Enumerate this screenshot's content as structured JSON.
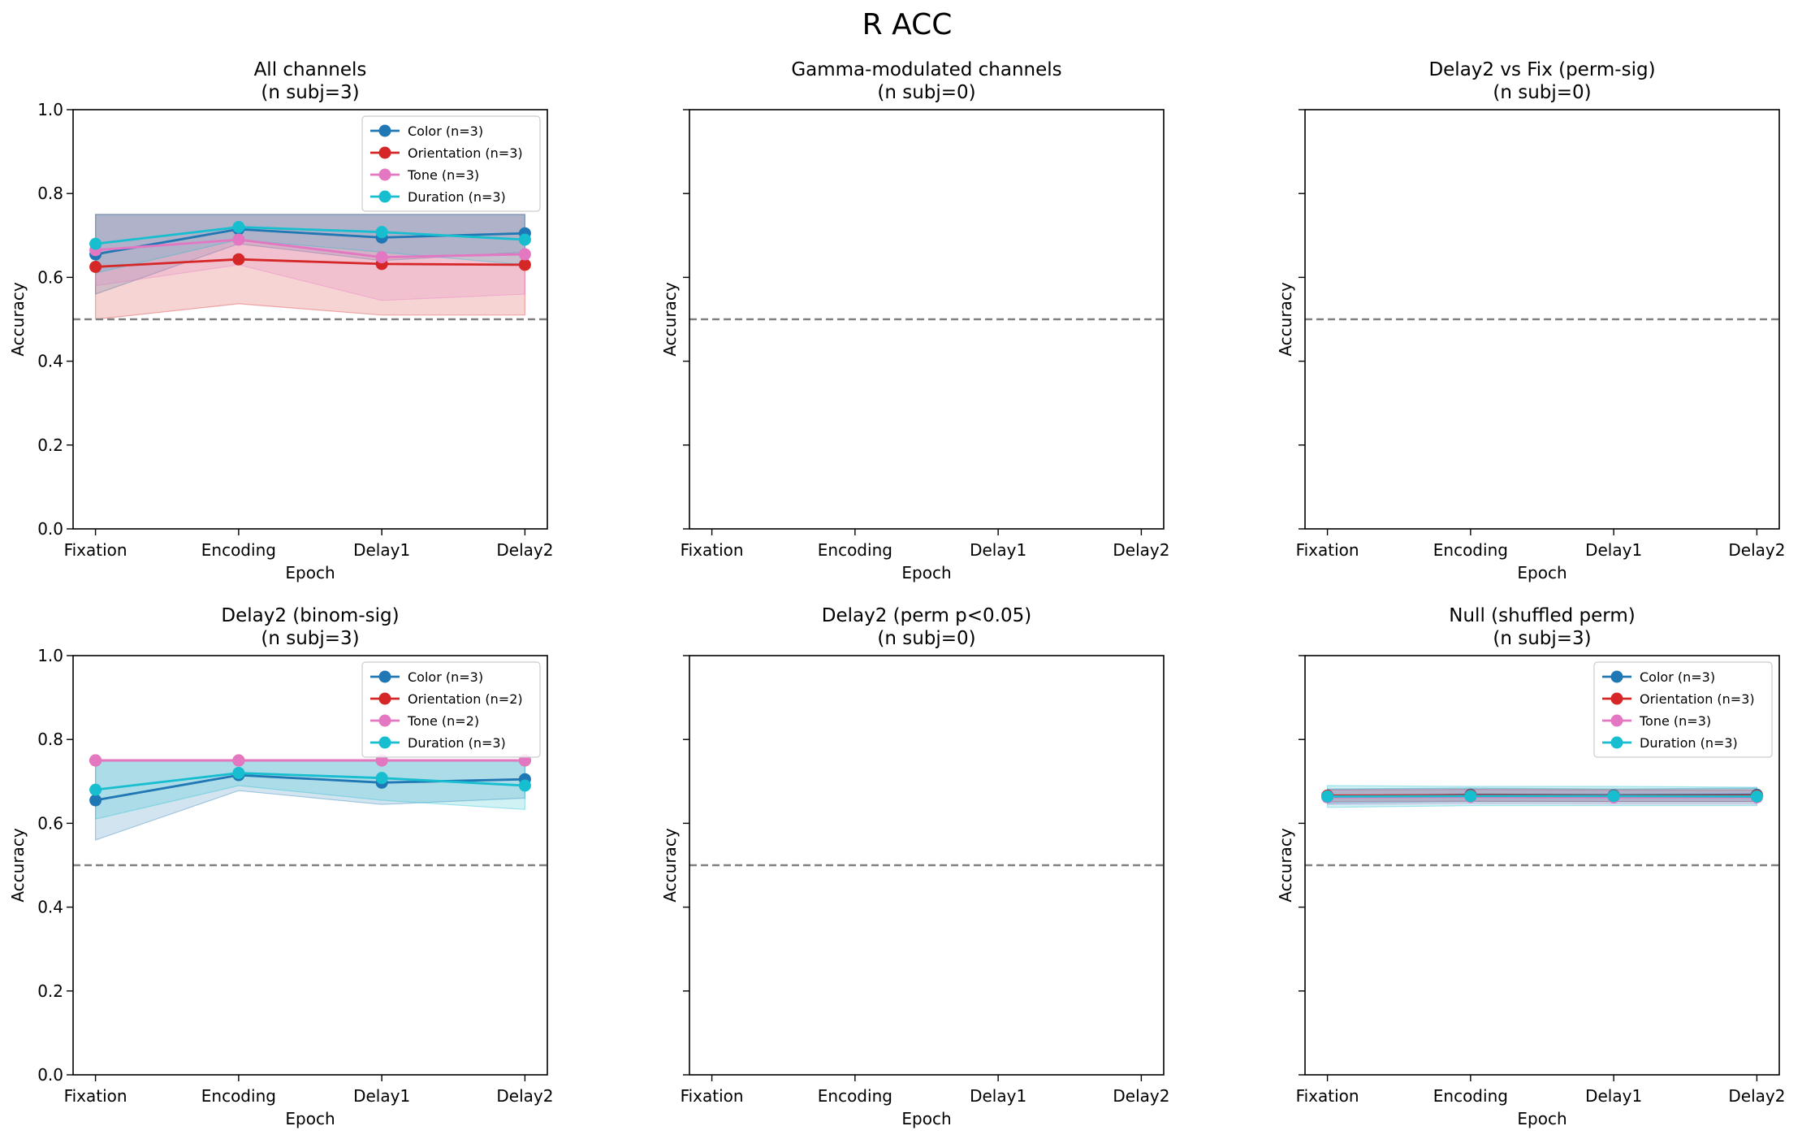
{
  "figure_title": "R ACC",
  "colors": {
    "Color": "#1f77b4",
    "Orientation": "#d62728",
    "Tone": "#e377c2",
    "Duration": "#17becf",
    "chance_line": "#808080"
  },
  "chart_data": [
    {
      "type": "line",
      "title_line1": "All channels",
      "title_line2": "(n subj=3)",
      "xlabel": "Epoch",
      "ylabel": "Accuracy",
      "categories": [
        "Fixation",
        "Encoding",
        "Delay1",
        "Delay2"
      ],
      "ylim": [
        0,
        1
      ],
      "yticks": [
        "0.0",
        "0.2",
        "0.4",
        "0.6",
        "0.8",
        "1.0"
      ],
      "chance_level": 0.5,
      "legend_position": "top-right",
      "series": [
        {
          "name": "Color (n=3)",
          "key": "Color",
          "values": [
            0.655,
            0.715,
            0.695,
            0.705
          ],
          "lower": [
            0.56,
            0.68,
            0.64,
            0.66
          ],
          "upper": [
            0.75,
            0.75,
            0.75,
            0.75
          ]
        },
        {
          "name": "Orientation (n=3)",
          "key": "Orientation",
          "values": [
            0.625,
            0.643,
            0.632,
            0.63
          ],
          "lower": [
            0.5,
            0.537,
            0.51,
            0.51
          ],
          "upper": [
            0.75,
            0.75,
            0.75,
            0.75
          ]
        },
        {
          "name": "Tone (n=3)",
          "key": "Tone",
          "values": [
            0.665,
            0.69,
            0.648,
            0.655
          ],
          "lower": [
            0.58,
            0.63,
            0.545,
            0.56
          ],
          "upper": [
            0.75,
            0.75,
            0.75,
            0.75
          ]
        },
        {
          "name": "Duration (n=3)",
          "key": "Duration",
          "values": [
            0.68,
            0.72,
            0.708,
            0.69
          ],
          "lower": [
            0.61,
            0.69,
            0.66,
            0.63
          ],
          "upper": [
            0.75,
            0.75,
            0.75,
            0.75
          ]
        }
      ]
    },
    {
      "type": "line",
      "title_line1": "Gamma-modulated channels",
      "title_line2": "(n subj=0)",
      "xlabel": "Epoch",
      "ylabel": "Accuracy",
      "categories": [
        "Fixation",
        "Encoding",
        "Delay1",
        "Delay2"
      ],
      "ylim": [
        0,
        1
      ],
      "yticks": [],
      "chance_level": 0.5,
      "series": []
    },
    {
      "type": "line",
      "title_line1": "Delay2 vs Fix (perm-sig)",
      "title_line2": "(n subj=0)",
      "xlabel": "Epoch",
      "ylabel": "Accuracy",
      "categories": [
        "Fixation",
        "Encoding",
        "Delay1",
        "Delay2"
      ],
      "ylim": [
        0,
        1
      ],
      "yticks": [],
      "chance_level": 0.5,
      "series": []
    },
    {
      "type": "line",
      "title_line1": "Delay2 (binom-sig)",
      "title_line2": "(n subj=3)",
      "xlabel": "Epoch",
      "ylabel": "Accuracy",
      "categories": [
        "Fixation",
        "Encoding",
        "Delay1",
        "Delay2"
      ],
      "ylim": [
        0,
        1
      ],
      "yticks": [
        "0.0",
        "0.2",
        "0.4",
        "0.6",
        "0.8",
        "1.0"
      ],
      "chance_level": 0.5,
      "legend_position": "top-right",
      "series": [
        {
          "name": "Color (n=3)",
          "key": "Color",
          "values": [
            0.655,
            0.715,
            0.697,
            0.705
          ],
          "lower": [
            0.56,
            0.678,
            0.645,
            0.66
          ],
          "upper": [
            0.75,
            0.75,
            0.75,
            0.75
          ]
        },
        {
          "name": "Orientation (n=2)",
          "key": "Orientation",
          "values": [
            0.75,
            0.75,
            0.75,
            0.75
          ],
          "lower": [
            0.75,
            0.75,
            0.75,
            0.75
          ],
          "upper": [
            0.75,
            0.75,
            0.75,
            0.75
          ]
        },
        {
          "name": "Tone (n=2)",
          "key": "Tone",
          "values": [
            0.75,
            0.75,
            0.75,
            0.75
          ],
          "lower": [
            0.75,
            0.75,
            0.75,
            0.75
          ],
          "upper": [
            0.75,
            0.75,
            0.75,
            0.75
          ]
        },
        {
          "name": "Duration (n=3)",
          "key": "Duration",
          "values": [
            0.68,
            0.72,
            0.708,
            0.69
          ],
          "lower": [
            0.61,
            0.69,
            0.655,
            0.633
          ],
          "upper": [
            0.75,
            0.75,
            0.75,
            0.75
          ]
        }
      ]
    },
    {
      "type": "line",
      "title_line1": "Delay2 (perm p<0.05)",
      "title_line2": "(n subj=0)",
      "xlabel": "Epoch",
      "ylabel": "Accuracy",
      "categories": [
        "Fixation",
        "Encoding",
        "Delay1",
        "Delay2"
      ],
      "ylim": [
        0,
        1
      ],
      "yticks": [],
      "chance_level": 0.5,
      "series": []
    },
    {
      "type": "line",
      "title_line1": "Null (shuffled perm)",
      "title_line2": "(n subj=3)",
      "xlabel": "Epoch",
      "ylabel": "Accuracy",
      "categories": [
        "Fixation",
        "Encoding",
        "Delay1",
        "Delay2"
      ],
      "ylim": [
        0,
        1
      ],
      "yticks": [],
      "chance_level": 0.5,
      "legend_position": "top-right",
      "series": [
        {
          "name": "Color (n=3)",
          "key": "Color",
          "values": [
            0.665,
            0.668,
            0.667,
            0.668
          ],
          "lower": [
            0.648,
            0.652,
            0.652,
            0.652
          ],
          "upper": [
            0.682,
            0.684,
            0.682,
            0.684
          ]
        },
        {
          "name": "Orientation (n=3)",
          "key": "Orientation",
          "values": [
            0.666,
            0.667,
            0.666,
            0.666
          ],
          "lower": [
            0.652,
            0.653,
            0.652,
            0.652
          ],
          "upper": [
            0.68,
            0.681,
            0.68,
            0.68
          ]
        },
        {
          "name": "Tone (n=3)",
          "key": "Tone",
          "values": [
            0.662,
            0.663,
            0.662,
            0.662
          ],
          "lower": [
            0.645,
            0.647,
            0.646,
            0.646
          ],
          "upper": [
            0.679,
            0.68,
            0.678,
            0.678
          ]
        },
        {
          "name": "Duration (n=3)",
          "key": "Duration",
          "values": [
            0.664,
            0.665,
            0.665,
            0.664
          ],
          "lower": [
            0.638,
            0.642,
            0.642,
            0.642
          ],
          "upper": [
            0.69,
            0.688,
            0.688,
            0.686
          ]
        }
      ]
    }
  ]
}
